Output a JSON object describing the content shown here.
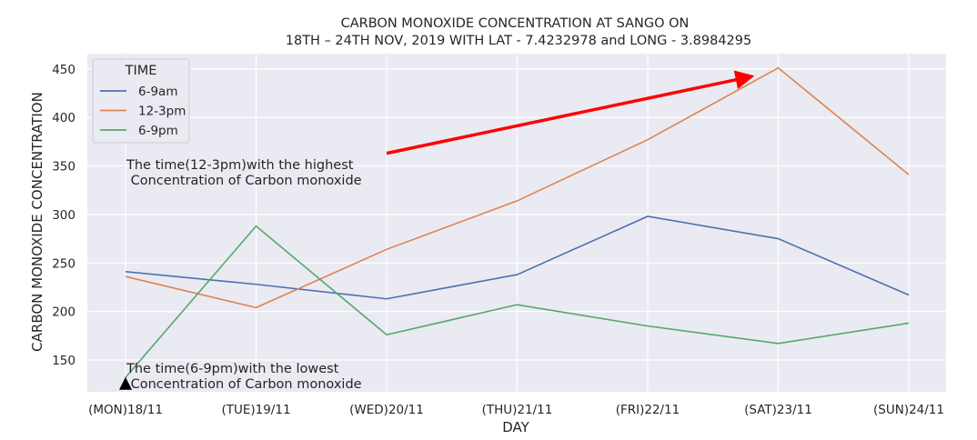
{
  "chart_data": {
    "type": "line",
    "title": "CARBON MONOXIDE CONCENTRATION AT SANGO ON",
    "subtitle": "18TH – 24TH NOV, 2019 WITH LAT - 7.4232978 and LONG - 3.8984295",
    "xlabel": "DAY",
    "ylabel": "CARBON MONOXIDE CONCENTRATION",
    "categories": [
      "(MON)18/11",
      "(TUE)19/11",
      "(WED)20/11",
      "(THU)21/11",
      "(FRI)22/11",
      "(SAT)23/11",
      "(SUN)24/11"
    ],
    "yticks": [
      150,
      200,
      250,
      300,
      350,
      400,
      450
    ],
    "ylim": [
      120,
      464
    ],
    "grid": true,
    "legend": {
      "title": "TIME",
      "placement": "top-left"
    },
    "series": [
      {
        "name": "6-9am",
        "color": "#4c72b0",
        "values": [
          241,
          228,
          213,
          238,
          298,
          275,
          217
        ]
      },
      {
        "name": "12-3pm",
        "color": "#dd8452",
        "values": [
          236,
          204,
          264,
          314,
          377,
          451,
          341
        ]
      },
      {
        "name": "6-9pm",
        "color": "#55a868",
        "values": [
          132,
          288,
          176,
          207,
          185,
          167,
          188
        ]
      }
    ],
    "annotations": [
      {
        "line1": "The time(12-3pm)with the highest",
        "line2": " Concentration of Carbon monoxide",
        "arrow_color": "#ff0000",
        "arrow_from": [
          2.0,
          363
        ],
        "arrow_to": [
          4.85,
          444
        ]
      },
      {
        "line1": "The time(6-9pm)with the lowest",
        "line2": " Concentration of Carbon monoxide",
        "arrow_color": "#000000",
        "marker_at": [
          0,
          125
        ]
      }
    ]
  }
}
